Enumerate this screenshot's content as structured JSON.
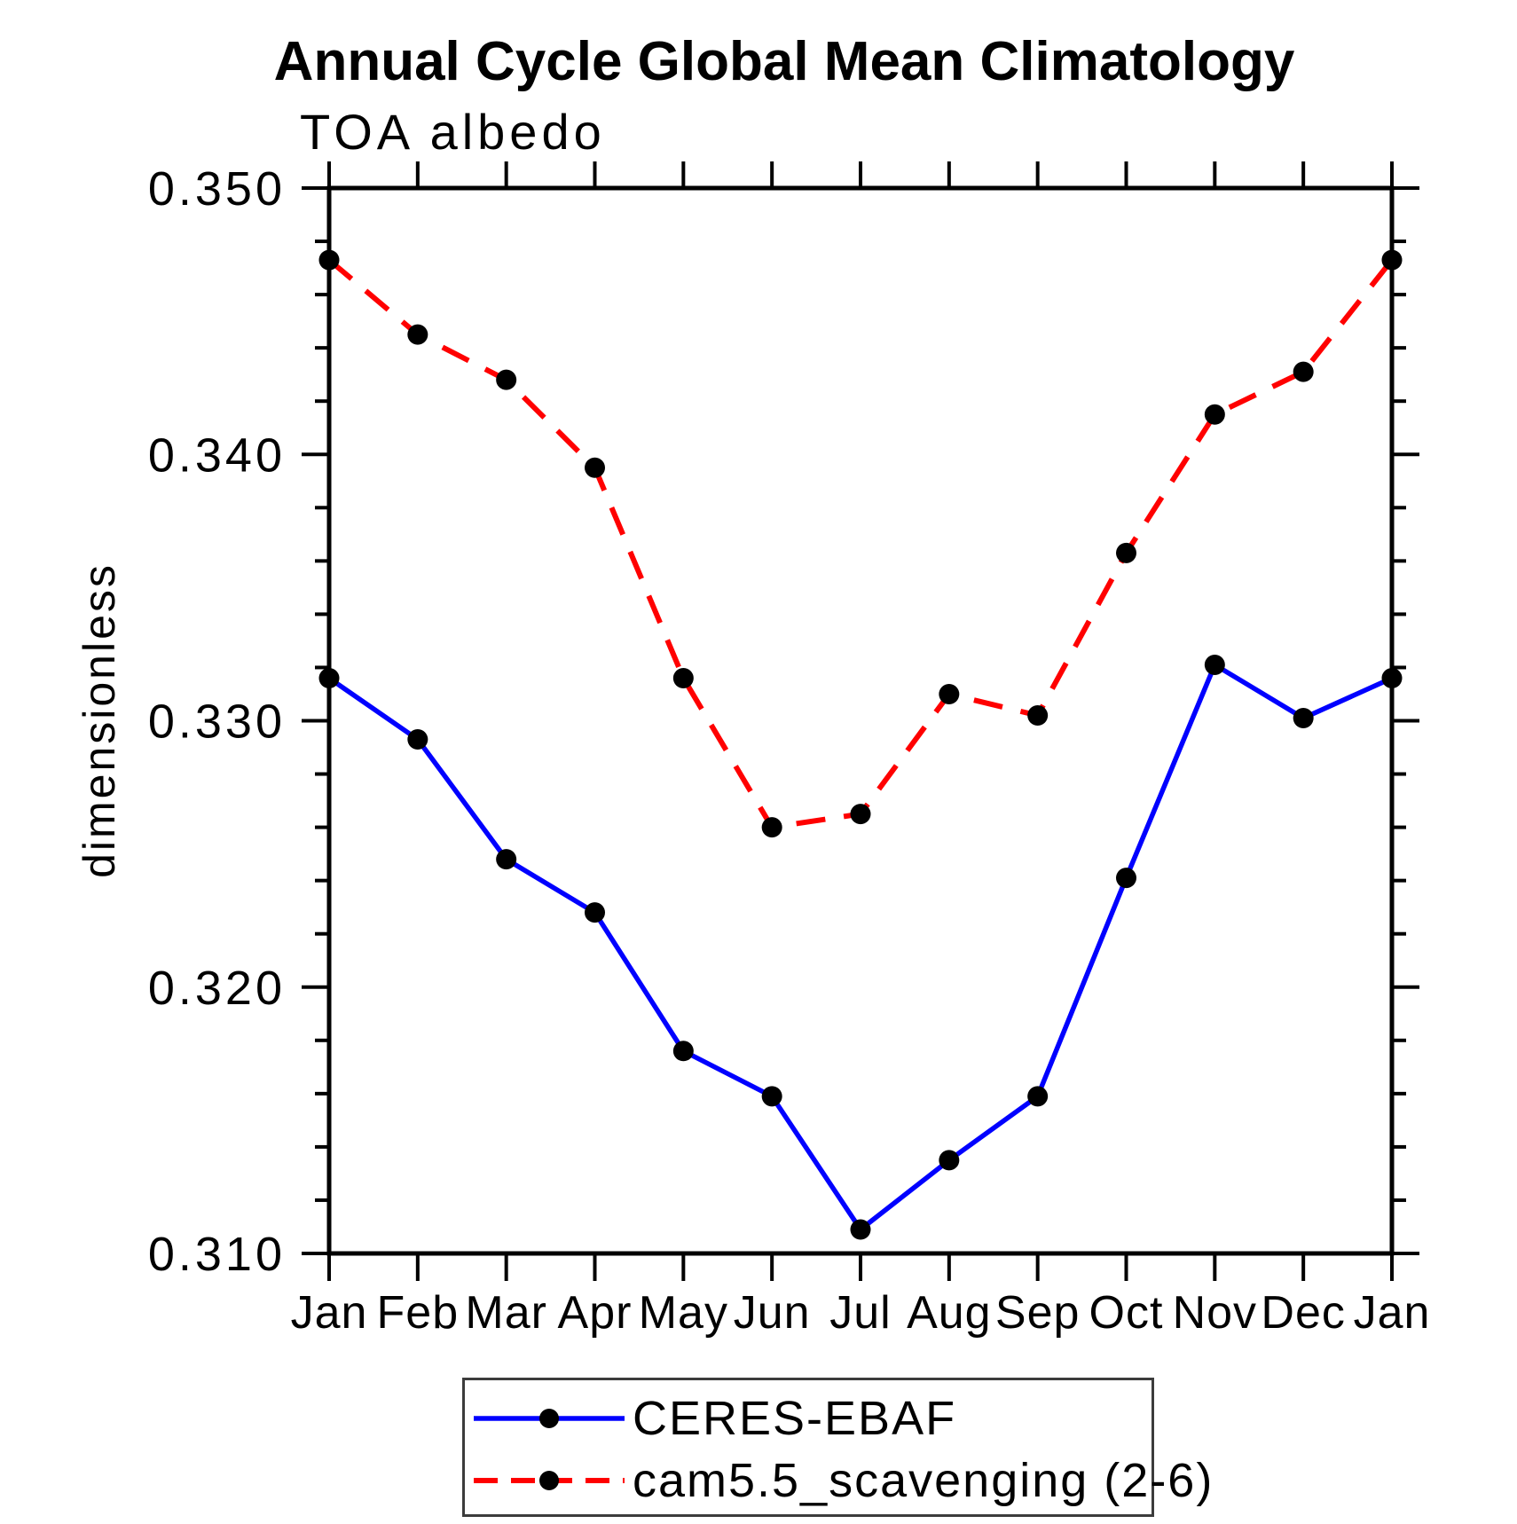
{
  "header": {
    "title": "Annual Cycle Global Mean Climatology",
    "subtitle": "TOA albedo"
  },
  "chart_data": {
    "type": "line",
    "title": "Annual Cycle Global Mean Climatology",
    "subtitle": "TOA albedo",
    "xlabel": "",
    "ylabel": "dimensionless",
    "categories": [
      "Jan",
      "Feb",
      "Mar",
      "Apr",
      "May",
      "Jun",
      "Jul",
      "Aug",
      "Sep",
      "Oct",
      "Nov",
      "Dec",
      "Jan"
    ],
    "ylim": [
      0.31,
      0.35
    ],
    "yticks": {
      "values": [
        0.35,
        0.34,
        0.33,
        0.32,
        0.31
      ],
      "labels": [
        "0.350",
        "0.340",
        "0.330",
        "0.320",
        "0.310"
      ],
      "minor_step": 0.002
    },
    "grid": false,
    "legend_position": "bottom",
    "marker": {
      "shape": "circle",
      "color": "#000000",
      "radius": 11.5
    },
    "series": [
      {
        "name": "CERES-EBAF",
        "color": "#0000ff",
        "line_style": "solid",
        "values": [
          0.3316,
          0.3293,
          0.3248,
          0.3228,
          0.3176,
          0.3159,
          0.3109,
          0.3135,
          0.3159,
          0.3241,
          0.3321,
          0.3301,
          0.3316
        ]
      },
      {
        "name": "cam5.5_scavenging (2-6)",
        "color": "#ff0000",
        "line_style": "dashed",
        "values": [
          0.3473,
          0.3445,
          0.3428,
          0.3395,
          0.3316,
          0.326,
          0.3265,
          0.331,
          0.3302,
          0.3363,
          0.3415,
          0.3431,
          0.3473
        ]
      }
    ]
  },
  "legend": {
    "entries": [
      {
        "label": "CERES-EBAF"
      },
      {
        "label": "cam5.5_scavenging (2-6)"
      }
    ]
  }
}
